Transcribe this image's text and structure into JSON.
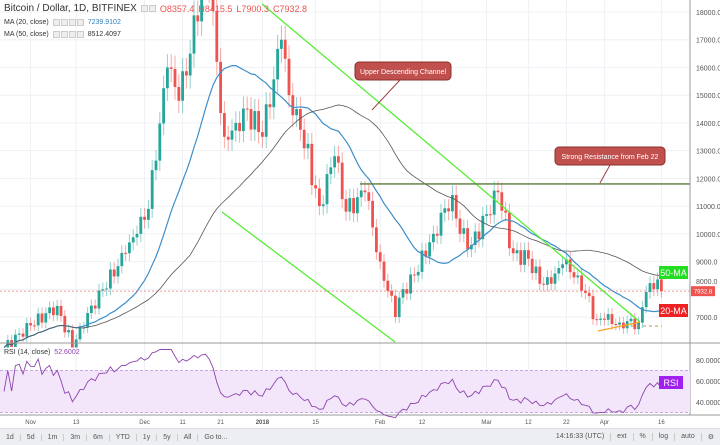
{
  "header": {
    "title": "Bitcoin / Dollar, 1D, BITFINEX",
    "open": "O8357.4",
    "high": "H8415.5",
    "low": "L7900.3",
    "close": "C7932.8"
  },
  "indicators": [
    {
      "label": "MA (20, close)",
      "value": "7239.9102",
      "color": "#2f7fbf"
    },
    {
      "label": "MA (50, close)",
      "value": "8512.4097",
      "color": "#222"
    }
  ],
  "rsi": {
    "label": "RSI (14, close)",
    "value": "52.6002",
    "tag": "RSI"
  },
  "toolbar": {
    "ranges": [
      "1d",
      "5d",
      "1m",
      "3m",
      "6m",
      "YTD",
      "1y",
      "5y",
      "All",
      "Go to..."
    ],
    "time": "14:16:33 (UTC)",
    "options": [
      "ext",
      "%",
      "log",
      "auto"
    ]
  },
  "annotations": {
    "channel": "Upper Descending Channel",
    "resistance": "Strong Resistance from Feb 22",
    "ma50": "50-MA",
    "ma20": "20-MA",
    "last_price": "7932.8"
  },
  "colors": {
    "up": "#26a69a",
    "down": "#ef5350",
    "channel": "#55ee33",
    "resistance": "#5a7a3a",
    "rsi": "#8e44ad"
  },
  "chart_data": {
    "type": "candlestick",
    "title": "Bitcoin / Dollar, 1D, BITFINEX",
    "price_ticks": [
      7000,
      8000,
      9000,
      10000,
      11000,
      12000,
      13000,
      14000,
      15000,
      16000,
      17000,
      18000
    ],
    "rsi_ticks": [
      "40.0000",
      "60.0000",
      "80.0000"
    ],
    "x_ticks": [
      [
        "Nov",
        "2017-11-01"
      ],
      [
        "13",
        "2017-11-13"
      ],
      [
        "Dec",
        "2017-12-01"
      ],
      [
        "11",
        "2017-12-11"
      ],
      [
        "21",
        "2017-12-21"
      ],
      [
        "2018",
        "2018-01-01"
      ],
      [
        "15",
        "2018-01-15"
      ],
      [
        "Feb",
        "2018-02-01"
      ],
      [
        "12",
        "2018-02-12"
      ],
      [
        "Mar",
        "2018-03-01"
      ],
      [
        "12",
        "2018-03-12"
      ],
      [
        "22",
        "2018-03-22"
      ],
      [
        "Apr",
        "2018-04-01"
      ],
      [
        "16",
        "2018-04-16"
      ]
    ],
    "start": "2017-10-25",
    "close_keypoints": [
      [
        "2017-10-25",
        5900
      ],
      [
        "2017-11-01",
        6700
      ],
      [
        "2017-11-08",
        7400
      ],
      [
        "2017-11-12",
        5900
      ],
      [
        "2017-11-14",
        6600
      ],
      [
        "2017-11-20",
        8000
      ],
      [
        "2017-11-26",
        9300
      ],
      [
        "2017-11-29",
        10000
      ],
      [
        "2017-12-02",
        10900
      ],
      [
        "2017-12-07",
        16000
      ],
      [
        "2017-12-10",
        14800
      ],
      [
        "2017-12-13",
        16500
      ],
      [
        "2017-12-16",
        19000
      ],
      [
        "2017-12-18",
        18900
      ],
      [
        "2017-12-22",
        13500
      ],
      [
        "2017-12-25",
        14000
      ],
      [
        "2017-12-28",
        14500
      ],
      [
        "2018-01-01",
        13500
      ],
      [
        "2018-01-06",
        17000
      ],
      [
        "2018-01-08",
        15000
      ],
      [
        "2018-01-10",
        14500
      ],
      [
        "2018-01-16",
        11000
      ],
      [
        "2018-01-20",
        12800
      ],
      [
        "2018-01-23",
        10800
      ],
      [
        "2018-01-28",
        11500
      ],
      [
        "2018-02-01",
        9000
      ],
      [
        "2018-02-05",
        7000
      ],
      [
        "2018-02-06",
        7700
      ],
      [
        "2018-02-10",
        8500
      ],
      [
        "2018-02-15",
        10000
      ],
      [
        "2018-02-20",
        11400
      ],
      [
        "2018-02-22",
        10000
      ],
      [
        "2018-02-25",
        9600
      ],
      [
        "2018-03-04",
        11500
      ],
      [
        "2018-03-08",
        9300
      ],
      [
        "2018-03-12",
        9100
      ],
      [
        "2018-03-15",
        8200
      ],
      [
        "2018-03-18",
        8200
      ],
      [
        "2018-03-21",
        8900
      ],
      [
        "2018-03-25",
        8500
      ],
      [
        "2018-03-30",
        6900
      ],
      [
        "2018-04-01",
        6900
      ],
      [
        "2018-04-05",
        6800
      ],
      [
        "2018-04-10",
        6800
      ],
      [
        "2018-04-12",
        7900
      ],
      [
        "2018-04-14",
        8000
      ],
      [
        "2018-04-15",
        8357
      ],
      [
        "2018-04-16",
        7932.8
      ]
    ],
    "resistance_level": 11800
  }
}
